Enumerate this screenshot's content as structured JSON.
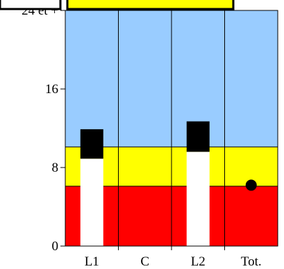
{
  "chart_data": {
    "type": "bar",
    "categories": [
      "L1",
      "C",
      "L2",
      "Tot."
    ],
    "ylim": [
      0,
      24
    ],
    "y_tick_labels": [
      "0",
      "8",
      "16",
      "24 et +"
    ],
    "y_tick_values": [
      0,
      8,
      16,
      24
    ],
    "bands": [
      {
        "from": 0,
        "to": 6.1,
        "color": "#ff0000"
      },
      {
        "from": 6.1,
        "to": 10.1,
        "color": "#ffff00"
      },
      {
        "from": 10.1,
        "to": 24,
        "color": "#99ccff"
      }
    ],
    "series": [
      {
        "category": "L1",
        "lower": 8.9,
        "upper": 11.9,
        "lower_color": "#ffffff",
        "upper_color": "#000000"
      },
      {
        "category": "L2",
        "lower": 9.6,
        "upper": 12.7,
        "lower_color": "#ffffff",
        "upper_color": "#000000"
      }
    ],
    "points": [
      {
        "category": "Tot.",
        "value": 6.2,
        "color": "#000000"
      }
    ],
    "legend_box_color": "#ffff00",
    "grid": "vertical separators between categories",
    "legend": "top"
  }
}
